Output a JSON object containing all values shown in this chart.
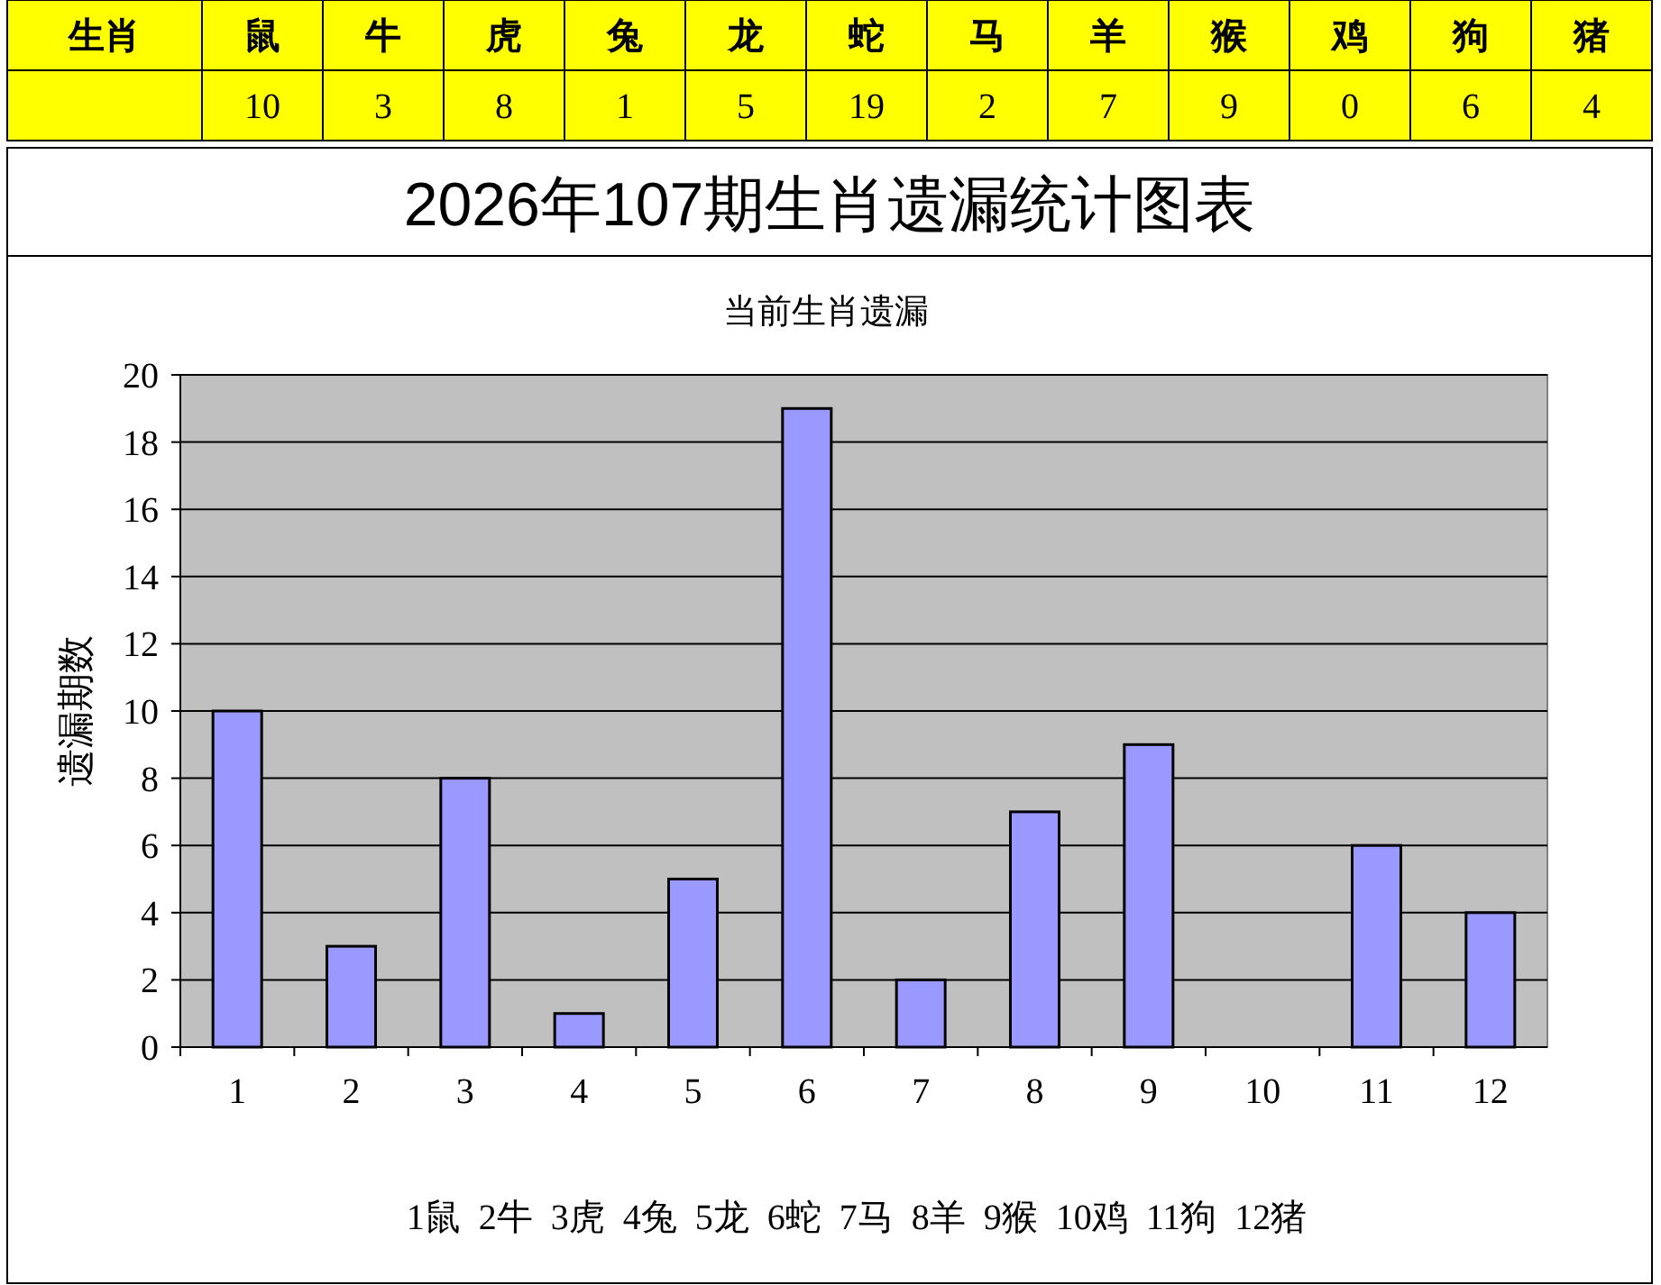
{
  "chart_data": [
    {
      "type": "other",
      "annotations": [
        "生肖"
      ],
      "categories": [
        "鼠",
        "牛",
        "虎",
        "兔",
        "龙",
        "蛇",
        "马",
        "羊",
        "猴",
        "鸡",
        "狗",
        "猪"
      ],
      "values": [
        10,
        3,
        8,
        1,
        5,
        19,
        2,
        7,
        9,
        0,
        6,
        4
      ],
      "data_labels": true,
      "color": "#ffff00"
    },
    {
      "type": "bar",
      "title": "2026年107期生肖遗漏统计图表",
      "subtitle": "当前生肖遗漏",
      "ylabel": "遗漏期数",
      "categories": [
        "1",
        "2",
        "3",
        "4",
        "5",
        "6",
        "7",
        "8",
        "9",
        "10",
        "11",
        "12"
      ],
      "values": [
        10,
        3,
        8,
        1,
        5,
        19,
        2,
        7,
        9,
        0,
        6,
        4
      ],
      "color": "#9999ff",
      "ylim": [
        0,
        20
      ],
      "yticks": [
        0,
        2,
        4,
        6,
        8,
        10,
        12,
        14,
        16,
        18,
        20
      ],
      "grid": "y",
      "annotations": [
        "1鼠  2牛  3虎  4兔  5龙  6蛇  7马  8羊  9猴  10鸡  11狗  12猪"
      ]
    }
  ]
}
